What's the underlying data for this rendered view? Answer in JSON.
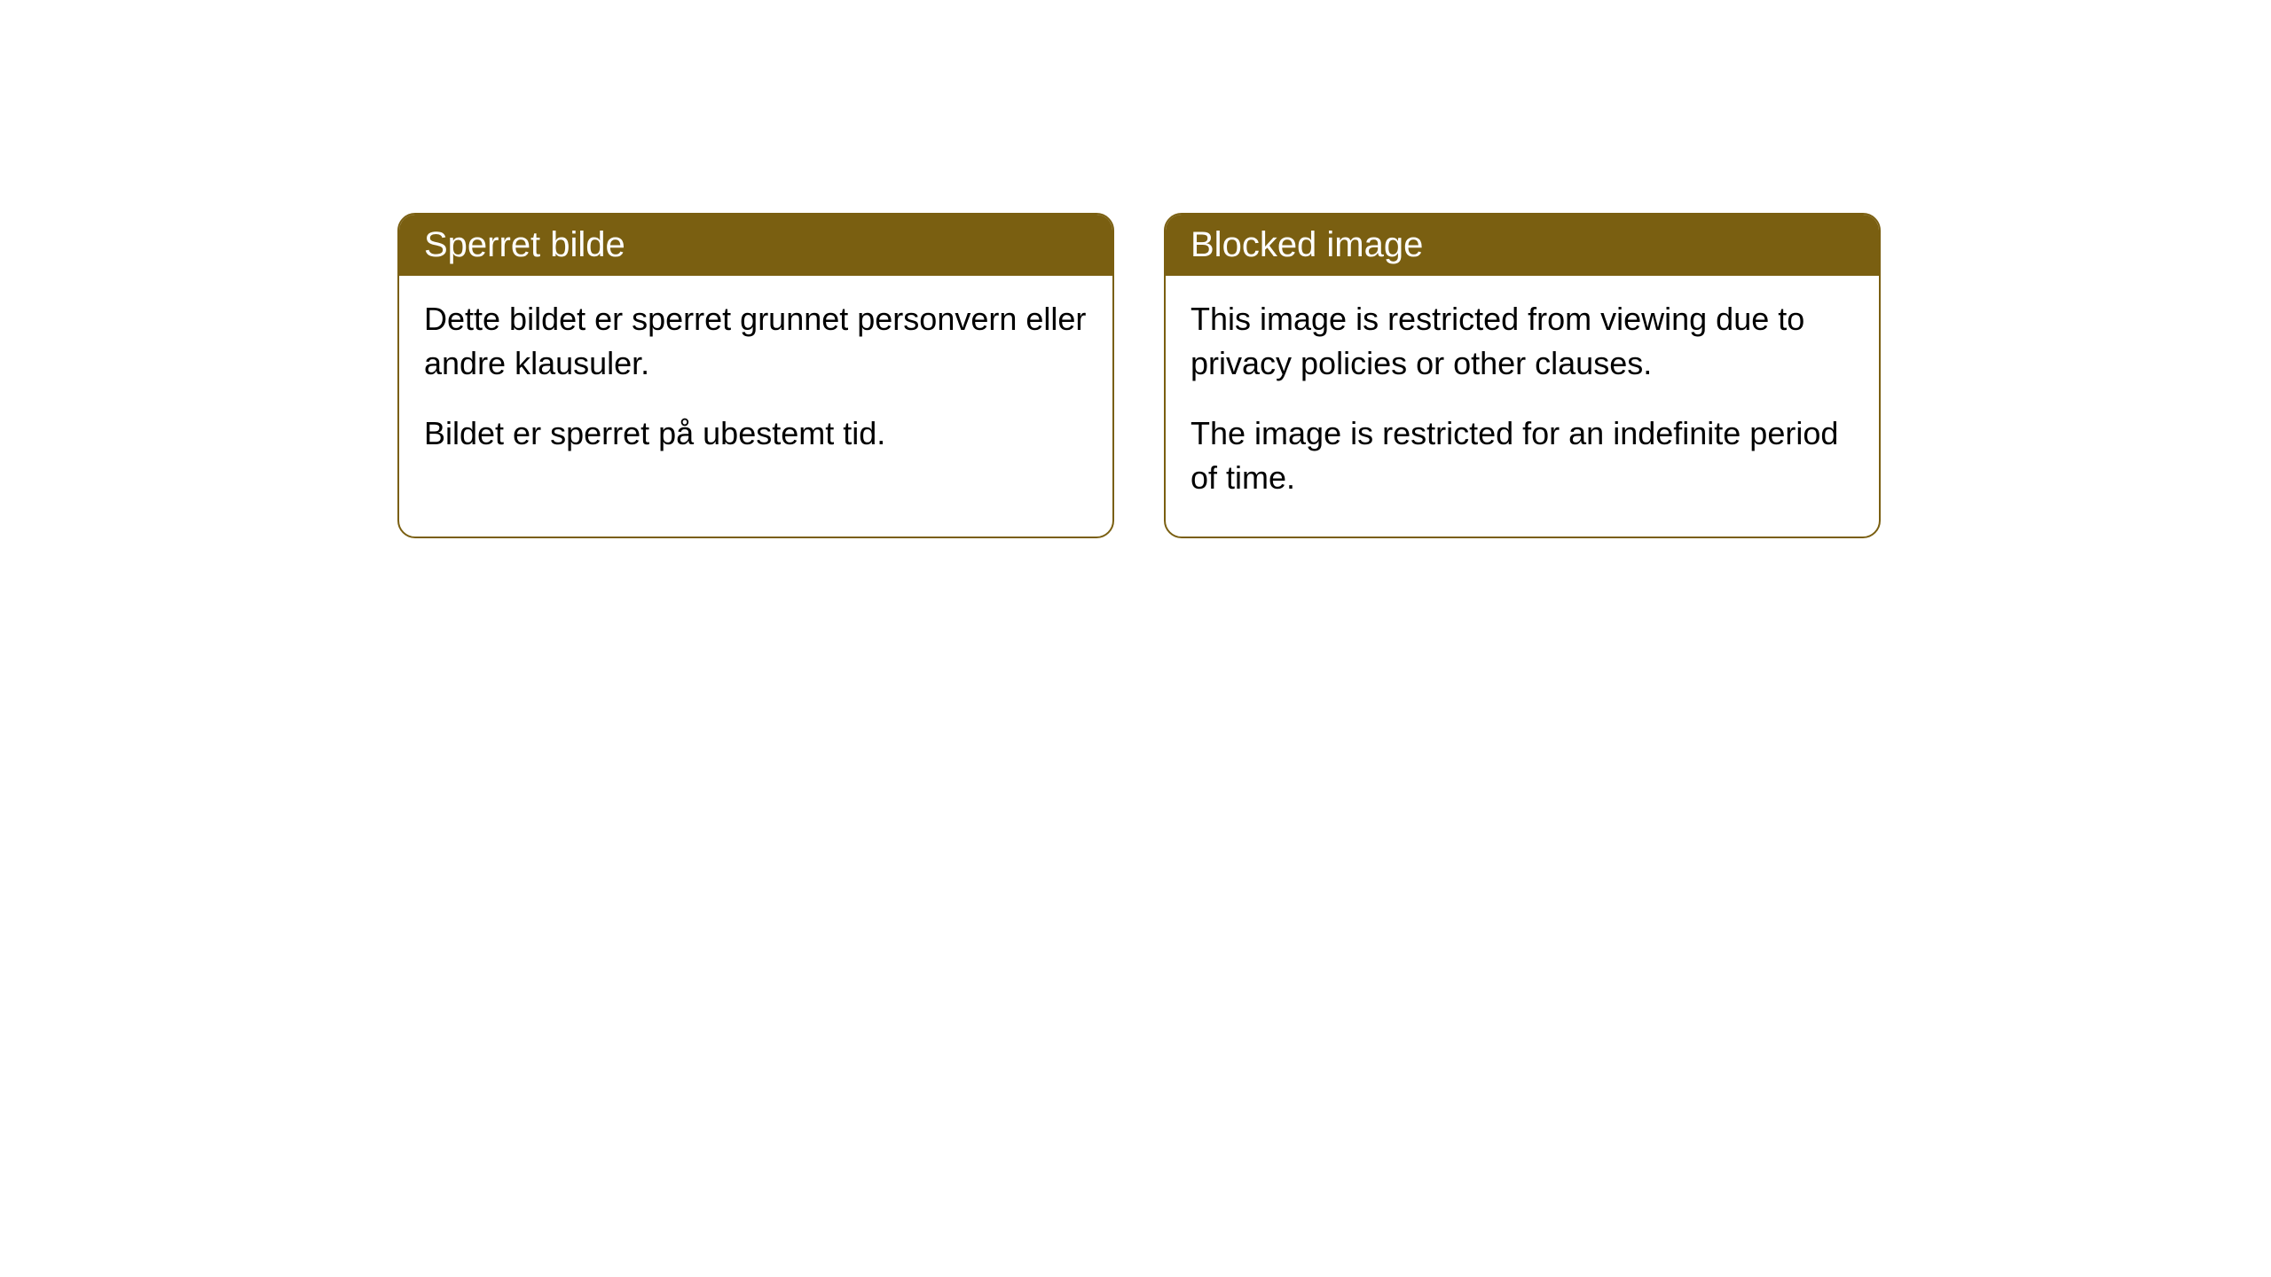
{
  "cards": [
    {
      "title": "Sperret bilde",
      "paragraph1": "Dette bildet er sperret grunnet personvern eller andre klausuler.",
      "paragraph2": "Bildet er sperret på ubestemt tid."
    },
    {
      "title": "Blocked image",
      "paragraph1": "This image is restricted from viewing due to privacy policies or other clauses.",
      "paragraph2": "The image is restricted for an indefinite period of time."
    }
  ],
  "styling": {
    "header_background": "#7a5f11",
    "header_text_color": "#ffffff",
    "card_border_color": "#7a5f11",
    "card_background": "#ffffff",
    "body_text_color": "#000000",
    "page_background": "#ffffff",
    "border_radius": 20,
    "title_fontsize": 40,
    "body_fontsize": 36
  }
}
